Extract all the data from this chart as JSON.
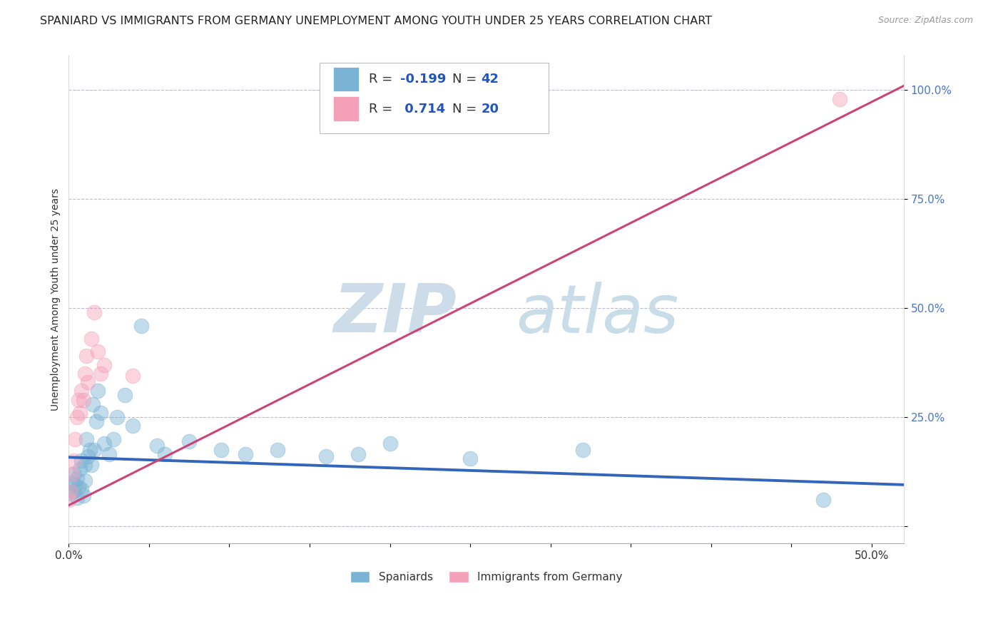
{
  "title": "SPANIARD VS IMMIGRANTS FROM GERMANY UNEMPLOYMENT AMONG YOUTH UNDER 25 YEARS CORRELATION CHART",
  "source": "Source: ZipAtlas.com",
  "ylabel": "Unemployment Among Youth under 25 years",
  "yticks": [
    0.0,
    0.25,
    0.5,
    0.75,
    1.0
  ],
  "ytick_labels": [
    "",
    "25.0%",
    "50.0%",
    "75.0%",
    "100.0%"
  ],
  "xlim": [
    0.0,
    0.52
  ],
  "ylim": [
    -0.04,
    1.08
  ],
  "watermark_zip": "ZIP",
  "watermark_atlas": "atlas",
  "spaniards_x": [
    0.001,
    0.002,
    0.003,
    0.003,
    0.004,
    0.005,
    0.005,
    0.006,
    0.007,
    0.008,
    0.008,
    0.009,
    0.01,
    0.01,
    0.011,
    0.012,
    0.013,
    0.014,
    0.015,
    0.016,
    0.017,
    0.018,
    0.02,
    0.022,
    0.025,
    0.028,
    0.03,
    0.035,
    0.04,
    0.045,
    0.055,
    0.06,
    0.075,
    0.095,
    0.11,
    0.13,
    0.16,
    0.18,
    0.2,
    0.25,
    0.32,
    0.47
  ],
  "spaniards_y": [
    0.075,
    0.1,
    0.08,
    0.12,
    0.095,
    0.065,
    0.11,
    0.09,
    0.13,
    0.085,
    0.15,
    0.07,
    0.14,
    0.105,
    0.2,
    0.16,
    0.175,
    0.14,
    0.28,
    0.175,
    0.24,
    0.31,
    0.26,
    0.19,
    0.165,
    0.2,
    0.25,
    0.3,
    0.23,
    0.46,
    0.185,
    0.165,
    0.195,
    0.175,
    0.165,
    0.175,
    0.16,
    0.165,
    0.19,
    0.155,
    0.175,
    0.06
  ],
  "immigrants_x": [
    0.0005,
    0.001,
    0.002,
    0.003,
    0.004,
    0.005,
    0.006,
    0.007,
    0.008,
    0.009,
    0.01,
    0.011,
    0.012,
    0.014,
    0.016,
    0.018,
    0.02,
    0.022,
    0.04,
    0.48
  ],
  "immigrants_y": [
    0.06,
    0.08,
    0.12,
    0.15,
    0.2,
    0.25,
    0.29,
    0.26,
    0.31,
    0.29,
    0.35,
    0.39,
    0.33,
    0.43,
    0.49,
    0.4,
    0.35,
    0.37,
    0.345,
    0.98
  ],
  "blue_line_x": [
    0.0,
    0.52
  ],
  "blue_line_y": [
    0.158,
    0.095
  ],
  "pink_line_x": [
    0.0,
    0.52
  ],
  "pink_line_y": [
    0.048,
    1.01
  ],
  "scatter_size": 220,
  "scatter_alpha": 0.45,
  "spaniard_color": "#7ab3d4",
  "immigrant_color": "#f4a0b8",
  "blue_line_color": "#3366bb",
  "pink_line_color": "#cc4477",
  "grid_color": "#bbbbcc",
  "background_color": "#ffffff",
  "title_fontsize": 11.5,
  "axis_label_fontsize": 10,
  "tick_fontsize": 11,
  "watermark_color_zip": "#ccdce8",
  "watermark_color_atlas": "#c8dde8",
  "watermark_fontsize": 68,
  "r1_val": "-0.199",
  "n1_val": "42",
  "r2_val": "0.714",
  "n2_val": "20",
  "legend_label1": "R = ",
  "legend_label2": "N = "
}
